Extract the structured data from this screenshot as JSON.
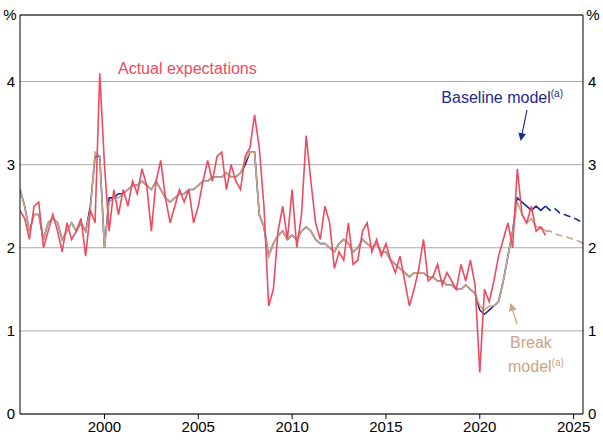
{
  "chart_data": {
    "type": "line",
    "y_label": "%",
    "y2_label": "%",
    "x": [
      1995.5,
      1995.75,
      1996,
      1996.25,
      1996.5,
      1996.75,
      1997,
      1997.25,
      1997.5,
      1997.75,
      1998,
      1998.25,
      1998.5,
      1998.75,
      1999,
      1999.25,
      1999.5,
      1999.75,
      2000,
      2000.25,
      2000.5,
      2000.75,
      2001,
      2001.25,
      2001.5,
      2001.75,
      2002,
      2002.25,
      2002.5,
      2002.75,
      2003,
      2003.25,
      2003.5,
      2003.75,
      2004,
      2004.25,
      2004.5,
      2004.75,
      2005,
      2005.25,
      2005.5,
      2005.75,
      2006,
      2006.25,
      2006.5,
      2006.75,
      2007,
      2007.25,
      2007.5,
      2007.75,
      2008,
      2008.25,
      2008.5,
      2008.75,
      2009,
      2009.25,
      2009.5,
      2009.75,
      2010,
      2010.25,
      2010.5,
      2010.75,
      2011,
      2011.25,
      2011.5,
      2011.75,
      2012,
      2012.25,
      2012.5,
      2012.75,
      2013,
      2013.25,
      2013.5,
      2013.75,
      2014,
      2014.25,
      2014.5,
      2014.75,
      2015,
      2015.25,
      2015.5,
      2015.75,
      2016,
      2016.25,
      2016.5,
      2016.75,
      2017,
      2017.25,
      2017.5,
      2017.75,
      2018,
      2018.25,
      2018.5,
      2018.75,
      2019,
      2019.25,
      2019.5,
      2019.75,
      2020,
      2020.25,
      2020.5,
      2020.75,
      2021,
      2021.25,
      2021.5,
      2021.75,
      2022,
      2022.25,
      2022.5,
      2022.75,
      2023,
      2023.25,
      2023.5,
      2023.75,
      2024,
      2024.25,
      2024.5,
      2024.75,
      2025,
      2025.25,
      2025.5
    ],
    "series": [
      {
        "name": "Baseline model(a)",
        "color": "#1c2a8c",
        "line_style": "solid",
        "values": [
          2.7,
          2.5,
          2.2,
          2.4,
          2.4,
          2.1,
          2.3,
          2.35,
          2.3,
          2.1,
          2.2,
          2.3,
          2.2,
          2.3,
          2.2,
          2.5,
          3.1,
          3.1,
          2.0,
          2.6,
          2.6,
          2.65,
          2.65,
          2.7,
          2.75,
          2.75,
          2.8,
          2.75,
          2.7,
          2.8,
          2.7,
          2.6,
          2.55,
          2.6,
          2.65,
          2.65,
          2.7,
          2.7,
          2.75,
          2.8,
          2.8,
          2.85,
          2.85,
          2.85,
          2.9,
          2.85,
          2.85,
          2.9,
          3.0,
          3.15,
          3.15,
          2.4,
          2.25,
          1.9,
          2.05,
          2.15,
          2.2,
          2.1,
          2.15,
          2.1,
          2.2,
          2.25,
          2.2,
          2.1,
          2.05,
          2.05,
          2.0,
          1.95,
          2.05,
          2.1,
          2.05,
          1.95,
          2.0,
          2.1,
          2.05,
          2.0,
          2.05,
          1.95,
          1.95,
          1.85,
          1.8,
          1.75,
          1.7,
          1.65,
          1.7,
          1.7,
          1.7,
          1.65,
          1.65,
          1.6,
          1.6,
          1.55,
          1.55,
          1.5,
          1.5,
          1.55,
          1.5,
          1.45,
          1.25,
          1.2,
          1.25,
          1.3,
          1.35,
          1.6,
          1.9,
          2.2,
          2.6,
          2.55,
          2.5,
          2.45,
          2.5,
          2.45,
          2.5,
          null,
          null,
          null,
          null,
          null,
          null,
          null,
          null
        ]
      },
      {
        "name": "Baseline model(a)",
        "color": "#1c2a8c",
        "line_style": "dashed",
        "values": [
          null,
          null,
          null,
          null,
          null,
          null,
          null,
          null,
          null,
          null,
          null,
          null,
          null,
          null,
          null,
          null,
          null,
          null,
          null,
          null,
          null,
          null,
          null,
          null,
          null,
          null,
          null,
          null,
          null,
          null,
          null,
          null,
          null,
          null,
          null,
          null,
          null,
          null,
          null,
          null,
          null,
          null,
          null,
          null,
          null,
          null,
          null,
          null,
          null,
          null,
          null,
          null,
          null,
          null,
          null,
          null,
          null,
          null,
          null,
          null,
          null,
          null,
          null,
          null,
          null,
          null,
          null,
          null,
          null,
          null,
          null,
          null,
          null,
          null,
          null,
          null,
          null,
          null,
          null,
          null,
          null,
          null,
          null,
          null,
          null,
          null,
          null,
          null,
          null,
          null,
          null,
          null,
          null,
          null,
          null,
          null,
          null,
          null,
          null,
          null,
          null,
          null,
          null,
          null,
          null,
          null,
          null,
          null,
          null,
          null,
          null,
          null,
          2.5,
          2.45,
          2.47,
          2.42,
          2.4,
          2.38,
          2.36,
          2.33,
          2.3
        ]
      },
      {
        "name": "Break model(a)",
        "color": "#c8a584",
        "line_style": "solid",
        "values": [
          2.7,
          2.5,
          2.2,
          2.4,
          2.4,
          2.1,
          2.3,
          2.35,
          2.3,
          2.1,
          2.2,
          2.3,
          2.2,
          2.3,
          2.2,
          2.45,
          3.15,
          3.1,
          2.0,
          2.55,
          2.6,
          2.6,
          2.65,
          2.7,
          2.75,
          2.75,
          2.8,
          2.75,
          2.7,
          2.8,
          2.7,
          2.6,
          2.55,
          2.6,
          2.65,
          2.65,
          2.7,
          2.7,
          2.75,
          2.8,
          2.8,
          2.85,
          2.85,
          2.85,
          2.9,
          2.85,
          2.85,
          2.9,
          3.05,
          3.15,
          3.15,
          2.4,
          2.25,
          1.9,
          2.05,
          2.15,
          2.2,
          2.1,
          2.15,
          2.1,
          2.2,
          2.25,
          2.2,
          2.1,
          2.05,
          2.05,
          2.0,
          1.95,
          2.05,
          2.1,
          2.05,
          1.95,
          2.0,
          2.1,
          2.05,
          2.0,
          2.05,
          1.95,
          1.95,
          1.85,
          1.8,
          1.75,
          1.7,
          1.65,
          1.7,
          1.7,
          1.7,
          1.65,
          1.65,
          1.6,
          1.6,
          1.55,
          1.55,
          1.5,
          1.5,
          1.55,
          1.5,
          1.45,
          1.3,
          1.25,
          1.3,
          1.3,
          1.35,
          1.6,
          1.9,
          2.2,
          2.55,
          2.4,
          2.3,
          2.35,
          2.25,
          2.25,
          2.2,
          null,
          null,
          null,
          null,
          null,
          null,
          null,
          null
        ]
      },
      {
        "name": "Break model(a)",
        "color": "#c8a584",
        "line_style": "dashed",
        "values": [
          null,
          null,
          null,
          null,
          null,
          null,
          null,
          null,
          null,
          null,
          null,
          null,
          null,
          null,
          null,
          null,
          null,
          null,
          null,
          null,
          null,
          null,
          null,
          null,
          null,
          null,
          null,
          null,
          null,
          null,
          null,
          null,
          null,
          null,
          null,
          null,
          null,
          null,
          null,
          null,
          null,
          null,
          null,
          null,
          null,
          null,
          null,
          null,
          null,
          null,
          null,
          null,
          null,
          null,
          null,
          null,
          null,
          null,
          null,
          null,
          null,
          null,
          null,
          null,
          null,
          null,
          null,
          null,
          null,
          null,
          null,
          null,
          null,
          null,
          null,
          null,
          null,
          null,
          null,
          null,
          null,
          null,
          null,
          null,
          null,
          null,
          null,
          null,
          null,
          null,
          null,
          null,
          null,
          null,
          null,
          null,
          null,
          null,
          null,
          null,
          null,
          null,
          null,
          null,
          null,
          null,
          null,
          null,
          null,
          null,
          null,
          null,
          2.2,
          2.2,
          2.17,
          2.15,
          2.14,
          2.12,
          2.1,
          2.08,
          2.05
        ]
      },
      {
        "name": "Actual expectations",
        "color": "#ef4a60",
        "line_style": "solid",
        "values": [
          2.45,
          2.35,
          2.1,
          2.5,
          2.55,
          2.0,
          2.2,
          2.4,
          2.2,
          1.95,
          2.3,
          2.1,
          2.2,
          2.35,
          1.9,
          2.45,
          2.3,
          4.1,
          3.0,
          2.2,
          2.7,
          2.4,
          2.7,
          2.5,
          2.8,
          2.65,
          2.95,
          2.75,
          2.2,
          2.8,
          3.05,
          2.6,
          2.3,
          2.5,
          2.7,
          2.55,
          2.7,
          2.3,
          2.5,
          2.8,
          3.05,
          2.8,
          3.1,
          3.15,
          2.7,
          3.0,
          2.8,
          2.7,
          3.1,
          3.2,
          3.6,
          3.2,
          2.5,
          1.3,
          1.5,
          2.2,
          2.5,
          2.1,
          2.7,
          2.0,
          2.4,
          3.35,
          2.8,
          2.3,
          2.1,
          2.5,
          2.3,
          1.75,
          1.95,
          1.85,
          2.3,
          1.8,
          1.85,
          2.2,
          2.3,
          1.95,
          2.1,
          1.9,
          2.05,
          1.85,
          1.7,
          1.9,
          1.6,
          1.3,
          1.5,
          1.75,
          2.1,
          1.6,
          1.65,
          1.8,
          1.55,
          1.7,
          1.6,
          1.5,
          1.8,
          1.6,
          1.85,
          1.55,
          0.5,
          1.5,
          1.35,
          1.6,
          1.9,
          2.1,
          2.3,
          2.0,
          2.95,
          2.4,
          2.3,
          2.5,
          2.2,
          2.25,
          2.15,
          null,
          null,
          null,
          null,
          null,
          null,
          null,
          null
        ]
      }
    ],
    "xlim": [
      1995.5,
      2025.5
    ],
    "xticks": [
      2000,
      2005,
      2010,
      2015,
      2020,
      2025
    ],
    "ylim": [
      0,
      4.8
    ],
    "yticks": [
      0,
      1,
      2,
      3,
      4
    ],
    "y2lim": [
      0,
      4.8
    ],
    "y2ticks": [
      0,
      1,
      2,
      3,
      4
    ],
    "grid": true
  }
}
